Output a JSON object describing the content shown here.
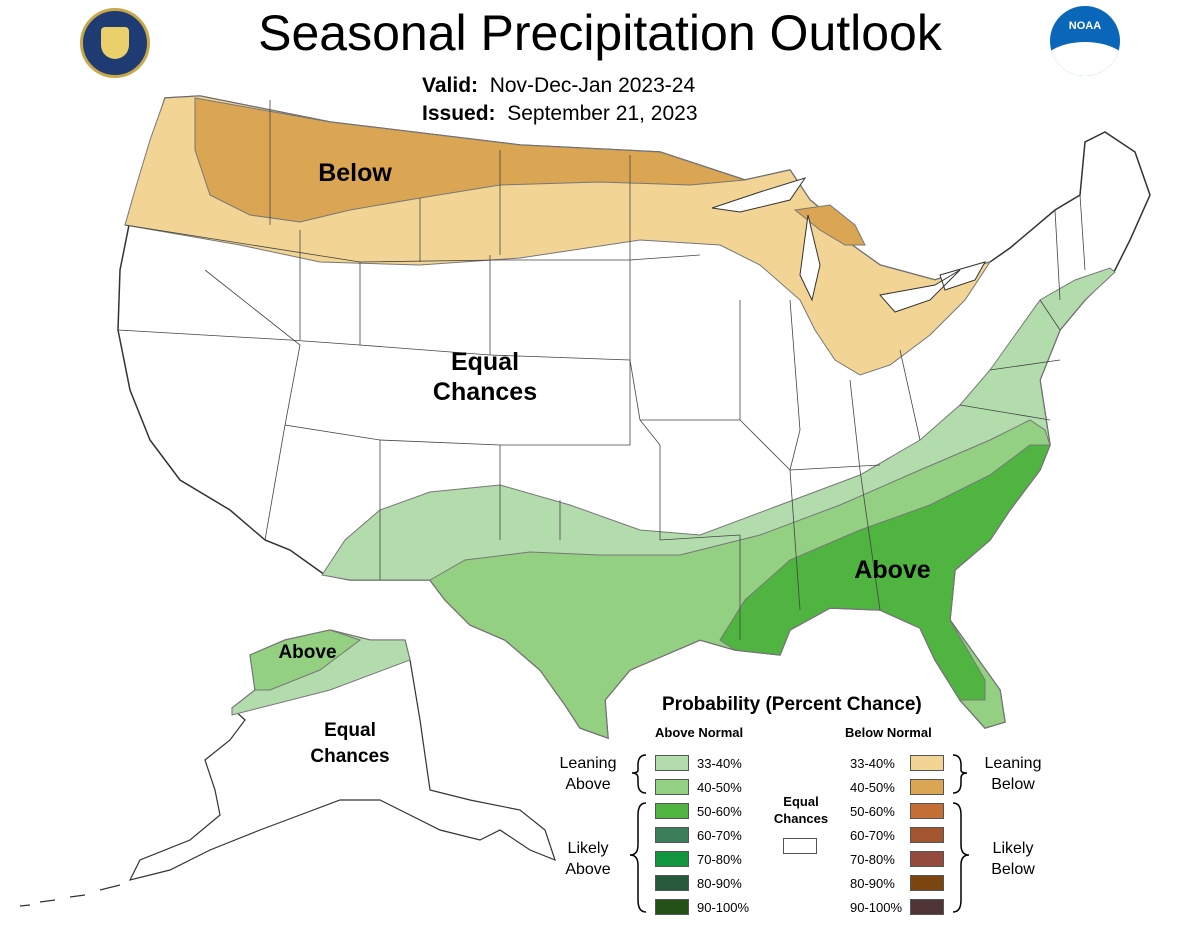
{
  "title": "Seasonal Precipitation Outlook",
  "valid_label": "Valid:",
  "valid_value": "Nov-Dec-Jan 2023-24",
  "issued_label": "Issued:",
  "issued_value": "September 21, 2023",
  "logos": {
    "left": "department-of-commerce-seal",
    "right": "noaa-logo",
    "right_text": "NOAA"
  },
  "regions": {
    "below": "Below",
    "above_conus": "Above",
    "above_alaska": "Above",
    "equal_conus_1": "Equal",
    "equal_conus_2": "Chances",
    "equal_alaska_1": "Equal",
    "equal_alaska_2": "Chances"
  },
  "legend": {
    "title": "Probability (Percent Chance)",
    "above_header": "Above Normal",
    "below_header": "Below Normal",
    "leaning_above_1": "Leaning",
    "leaning_above_2": "Above",
    "likely_above_1": "Likely",
    "likely_above_2": "Above",
    "leaning_below_1": "Leaning",
    "leaning_below_2": "Below",
    "likely_below_1": "Likely",
    "likely_below_2": "Below",
    "equal_1": "Equal",
    "equal_2": "Chances",
    "above_items": [
      {
        "label": "33-40%",
        "color": "#b3dcac"
      },
      {
        "label": "40-50%",
        "color": "#94d082"
      },
      {
        "label": "50-60%",
        "color": "#4fb440"
      },
      {
        "label": "60-70%",
        "color": "#3b7f5a"
      },
      {
        "label": "70-80%",
        "color": "#12953f"
      },
      {
        "label": "80-90%",
        "color": "#275a3c"
      },
      {
        "label": "90-100%",
        "color": "#235118"
      }
    ],
    "below_items": [
      {
        "label": "33-40%",
        "color": "#f2d595"
      },
      {
        "label": "40-50%",
        "color": "#dba653"
      },
      {
        "label": "50-60%",
        "color": "#c36f35"
      },
      {
        "label": "60-70%",
        "color": "#a35530"
      },
      {
        "label": "70-80%",
        "color": "#944a3c"
      },
      {
        "label": "80-90%",
        "color": "#7b450f"
      },
      {
        "label": "90-100%",
        "color": "#4e3434"
      }
    ]
  }
}
